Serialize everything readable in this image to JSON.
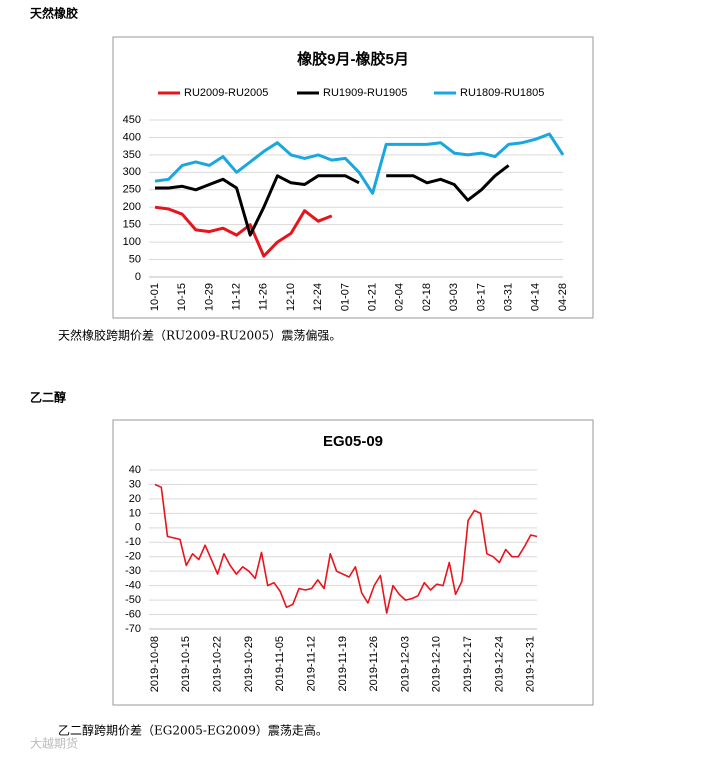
{
  "sections": [
    {
      "heading": "天然橡胶",
      "caption": "天然橡胶跨期价差（RU2009-RU2005）震荡偏强。"
    },
    {
      "heading": "乙二醇",
      "caption": "乙二醇跨期价差（EG2005-EG2009）震荡走高。"
    }
  ],
  "watermark": "大越期货",
  "chart_data": [
    {
      "type": "line",
      "title": "橡胶9月-橡胶5月",
      "categories": [
        "10-01",
        null,
        "10-15",
        null,
        "10-29",
        null,
        "11-12",
        null,
        "11-26",
        null,
        "12-10",
        null,
        "12-24",
        null,
        "01-07",
        null,
        "01-21",
        null,
        "02-04",
        null,
        "02-18",
        null,
        "03-03",
        null,
        "03-17",
        null,
        "03-31",
        null,
        "04-14",
        null,
        "04-28"
      ],
      "series": [
        {
          "name": "RU2009-RU2005",
          "color": "#e8141c",
          "values": [
            200,
            195,
            180,
            135,
            130,
            140,
            120,
            150,
            60,
            100,
            125,
            190,
            160,
            175,
            null,
            null,
            null,
            null,
            null,
            null,
            null,
            null,
            null,
            null,
            null,
            null,
            null,
            null,
            null,
            null,
            null
          ]
        },
        {
          "name": "RU1909-RU1905",
          "color": "#000000",
          "values": [
            255,
            255,
            260,
            250,
            265,
            280,
            255,
            120,
            200,
            290,
            270,
            265,
            290,
            290,
            290,
            270,
            null,
            290,
            290,
            290,
            270,
            280,
            265,
            220,
            250,
            290,
            320,
            null,
            null,
            null,
            null
          ]
        },
        {
          "name": "RU1809-RU1805",
          "color": "#1aa7e0",
          "values": [
            275,
            280,
            320,
            330,
            320,
            345,
            300,
            330,
            360,
            385,
            350,
            340,
            350,
            335,
            340,
            300,
            240,
            380,
            380,
            380,
            380,
            385,
            355,
            350,
            355,
            345,
            380,
            385,
            395,
            410,
            350
          ]
        }
      ],
      "ylim": [
        0,
        450
      ],
      "yticks": [
        0,
        50,
        100,
        150,
        200,
        250,
        300,
        350,
        400,
        450
      ],
      "grid": true,
      "legend": "top"
    },
    {
      "type": "line",
      "title": "EG05-09",
      "categories": [
        "2019-10-08",
        null,
        null,
        null,
        null,
        "2019-10-15",
        null,
        null,
        null,
        null,
        "2019-10-22",
        null,
        null,
        null,
        null,
        "2019-10-29",
        null,
        null,
        null,
        null,
        "2019-11-05",
        null,
        null,
        null,
        null,
        "2019-11-12",
        null,
        null,
        null,
        null,
        "2019-11-19",
        null,
        null,
        null,
        null,
        "2019-11-26",
        null,
        null,
        null,
        null,
        "2019-12-03",
        null,
        null,
        null,
        null,
        "2019-12-10",
        null,
        null,
        null,
        null,
        "2019-12-17",
        null,
        null,
        null,
        null,
        "2019-12-24",
        null,
        null,
        null,
        null,
        "2019-12-31",
        null
      ],
      "series": [
        {
          "name": null,
          "color": "#e8141c",
          "values": [
            30,
            28,
            -6,
            -7,
            -8,
            -26,
            -18,
            -22,
            -12,
            -22,
            -32,
            -18,
            -26,
            -32,
            -27,
            -30,
            -35,
            -17,
            -40,
            -38,
            -44,
            -55,
            -53,
            -42,
            -43,
            -42,
            -36,
            -42,
            -18,
            -30,
            -32,
            -34,
            -27,
            -45,
            -52,
            -40,
            -33,
            -59,
            -40,
            -46,
            -50,
            -49,
            -47,
            -38,
            -43,
            -39,
            -40,
            -24,
            -46,
            -37,
            5,
            12,
            10,
            -18,
            -20,
            -24,
            -15,
            -20,
            -20,
            -13,
            -5,
            -6
          ]
        }
      ],
      "ylim": [
        -70,
        40
      ],
      "yticks": [
        -70,
        -60,
        -50,
        -40,
        -30,
        -20,
        -10,
        0,
        10,
        20,
        30,
        40
      ],
      "grid": true
    }
  ]
}
